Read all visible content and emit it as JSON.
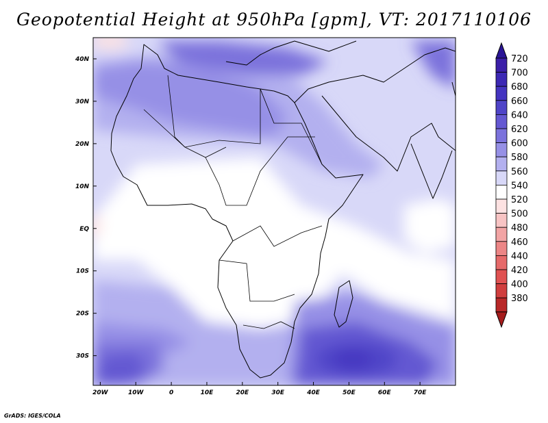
{
  "title": "Geopotential Height at 950hPa [gpm], VT: 2017110106",
  "credit": "GrADS: IGES/COLA",
  "map": {
    "lon_range": [
      -22,
      80
    ],
    "lat_range": [
      -37,
      45
    ],
    "x_ticks": [
      {
        "value": -20,
        "label": "20W"
      },
      {
        "value": -10,
        "label": "10W"
      },
      {
        "value": 0,
        "label": "0"
      },
      {
        "value": 10,
        "label": "10E"
      },
      {
        "value": 20,
        "label": "20E"
      },
      {
        "value": 30,
        "label": "30E"
      },
      {
        "value": 40,
        "label": "40E"
      },
      {
        "value": 50,
        "label": "50E"
      },
      {
        "value": 60,
        "label": "60E"
      },
      {
        "value": 70,
        "label": "70E"
      }
    ],
    "y_ticks": [
      {
        "value": 40,
        "label": "40N"
      },
      {
        "value": 30,
        "label": "30N"
      },
      {
        "value": 20,
        "label": "20N"
      },
      {
        "value": 10,
        "label": "10N"
      },
      {
        "value": 0,
        "label": "EQ"
      },
      {
        "value": -10,
        "label": "10S"
      },
      {
        "value": -20,
        "label": "20S"
      },
      {
        "value": -30,
        "label": "30S"
      }
    ]
  },
  "colorbar": {
    "levels": [
      {
        "label": "720",
        "color": "#3b1fa8"
      },
      {
        "label": "700",
        "color": "#3c28b4"
      },
      {
        "label": "680",
        "color": "#4434c0"
      },
      {
        "label": "660",
        "color": "#4f44c8"
      },
      {
        "label": "640",
        "color": "#6458d2"
      },
      {
        "label": "620",
        "color": "#7b72dc"
      },
      {
        "label": "600",
        "color": "#9690e6"
      },
      {
        "label": "580",
        "color": "#b3b0ef"
      },
      {
        "label": "560",
        "color": "#d8d8f8"
      },
      {
        "label": "540",
        "color": "#ffffff"
      },
      {
        "label": "520",
        "color": "#fde2e2"
      },
      {
        "label": "500",
        "color": "#f8c4c4"
      },
      {
        "label": "480",
        "color": "#f2a4a4"
      },
      {
        "label": "460",
        "color": "#ec8686"
      },
      {
        "label": "440",
        "color": "#e66a6a"
      },
      {
        "label": "420",
        "color": "#e05252"
      },
      {
        "label": "400",
        "color": "#d03e3e"
      },
      {
        "label": "380",
        "color": "#b82828"
      }
    ],
    "top_color": "#2a1596",
    "bottom_color": "#a51c1c"
  }
}
